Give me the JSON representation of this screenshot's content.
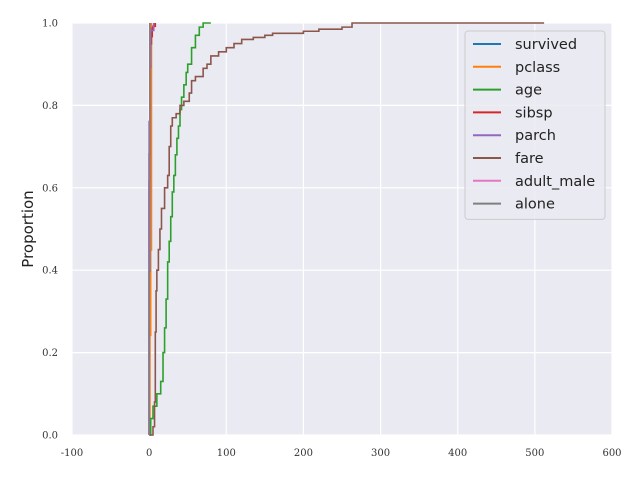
{
  "chart_data": {
    "type": "line",
    "title": "",
    "xlabel": "",
    "ylabel": "Proportion",
    "xlim": [
      -100,
      600
    ],
    "ylim": [
      0,
      1
    ],
    "xticks": [
      -100,
      0,
      100,
      200,
      300,
      400,
      500,
      600
    ],
    "xtick_labels": [
      "-100",
      "0",
      "100",
      "200",
      "300",
      "400",
      "500",
      "600"
    ],
    "yticks": [
      0,
      0.2,
      0.4,
      0.6,
      0.8,
      1.0
    ],
    "ytick_labels": [
      "0.0",
      "0.2",
      "0.4",
      "0.6",
      "0.8",
      "1.0"
    ],
    "grid": true,
    "background": "#eaeaf2",
    "legend_position": "top-right",
    "series": [
      {
        "name": "survived",
        "color": "#1f77b4",
        "x": [
          0,
          0,
          1
        ],
        "y": [
          0,
          0.616,
          1
        ]
      },
      {
        "name": "pclass",
        "color": "#ff7f0e",
        "x": [
          1,
          1,
          2,
          2,
          3,
          3
        ],
        "y": [
          0,
          0.242,
          0.242,
          0.449,
          0.449,
          1
        ]
      },
      {
        "name": "age",
        "color": "#2ca02c",
        "x": [
          0.4,
          2,
          5,
          10,
          15,
          18,
          20,
          22,
          24,
          26,
          28,
          30,
          32,
          34,
          36,
          38,
          40,
          42,
          45,
          48,
          50,
          55,
          60,
          65,
          70,
          75,
          80
        ],
        "y": [
          0,
          0.04,
          0.07,
          0.1,
          0.13,
          0.2,
          0.26,
          0.33,
          0.42,
          0.47,
          0.53,
          0.59,
          0.63,
          0.68,
          0.72,
          0.75,
          0.79,
          0.82,
          0.85,
          0.88,
          0.9,
          0.94,
          0.97,
          0.99,
          1.0,
          1.0,
          1.0
        ]
      },
      {
        "name": "sibsp",
        "color": "#d62728",
        "x": [
          0,
          0,
          1,
          1,
          2,
          2,
          3,
          3,
          4,
          4,
          5,
          5,
          8
        ],
        "y": [
          0,
          0.682,
          0.682,
          0.917,
          0.917,
          0.949,
          0.949,
          0.967,
          0.967,
          0.987,
          0.987,
          0.992,
          1
        ]
      },
      {
        "name": "parch",
        "color": "#9467bd",
        "x": [
          0,
          0,
          1,
          1,
          2,
          2,
          6
        ],
        "y": [
          0,
          0.761,
          0.761,
          0.893,
          0.893,
          0.982,
          1
        ]
      },
      {
        "name": "fare",
        "color": "#8c564b",
        "x": [
          0,
          5,
          7,
          8,
          9,
          10,
          12,
          14,
          16,
          20,
          24,
          26,
          28,
          30,
          35,
          40,
          45,
          52,
          55,
          60,
          70,
          75,
          80,
          90,
          100,
          110,
          120,
          135,
          150,
          160,
          200,
          220,
          250,
          263,
          300,
          400,
          512
        ],
        "y": [
          0,
          0.02,
          0.08,
          0.25,
          0.35,
          0.4,
          0.45,
          0.5,
          0.55,
          0.6,
          0.63,
          0.7,
          0.75,
          0.77,
          0.78,
          0.8,
          0.81,
          0.83,
          0.86,
          0.87,
          0.89,
          0.9,
          0.92,
          0.93,
          0.94,
          0.95,
          0.96,
          0.965,
          0.97,
          0.975,
          0.98,
          0.985,
          0.99,
          1.0,
          1.0,
          1.0,
          1.0
        ]
      },
      {
        "name": "adult_male",
        "color": "#e377c2",
        "x": [
          0,
          0,
          1
        ],
        "y": [
          0,
          0.397,
          1
        ]
      },
      {
        "name": "alone",
        "color": "#7f7f7f",
        "x": [
          0,
          0,
          1
        ],
        "y": [
          0,
          0.397,
          1
        ]
      }
    ]
  }
}
